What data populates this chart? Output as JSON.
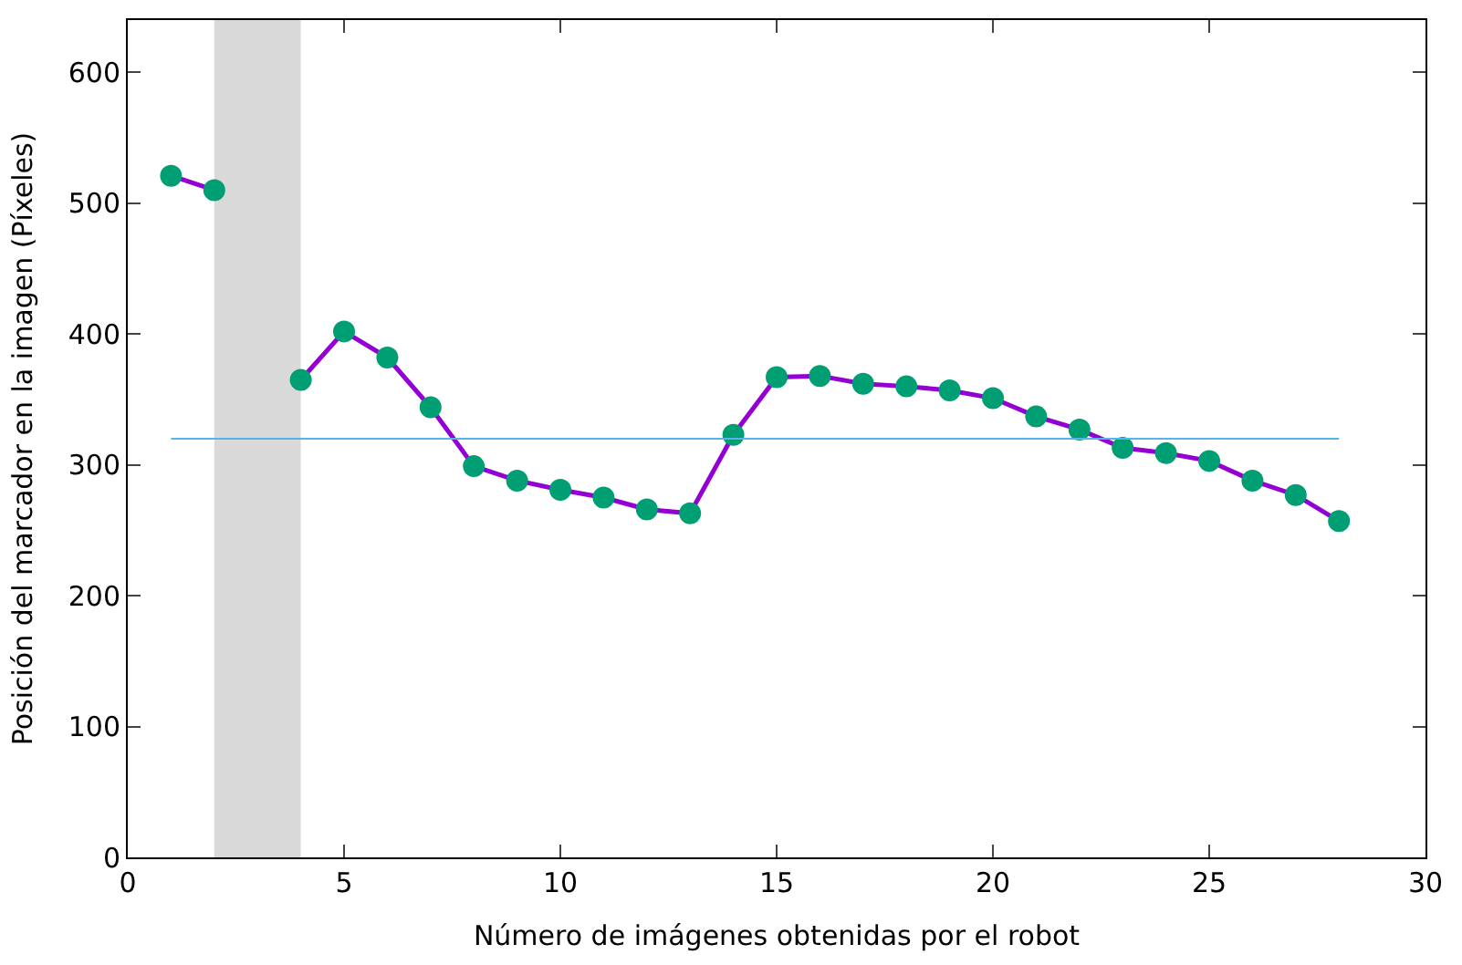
{
  "chart_data": {
    "type": "line",
    "xlabel": "Número de imágenes obtenidas por el robot",
    "ylabel": "Posición del marcador en la imagen (Píxeles)",
    "x": [
      1,
      2,
      3,
      4,
      5,
      6,
      7,
      8,
      9,
      10,
      11,
      12,
      13,
      14,
      15,
      16,
      17,
      18,
      19,
      20,
      21,
      22,
      23,
      24,
      25,
      26,
      27,
      28
    ],
    "series": [
      {
        "color": "#9400d3",
        "colors": [
          "#009e73",
          "#009e73",
          "#009e73",
          "#009e73",
          "#009e73",
          "#009e73",
          "#009e73",
          "#009e73",
          "#009e73",
          "#009e73",
          "#009e73",
          "#009e73",
          "#009e73",
          "#009e73",
          "#009e73",
          "#009e73",
          "#009e73",
          "#009e73",
          "#009e73",
          "#009e73",
          "#009e73",
          "#009e73",
          "#009e73",
          "#009e73",
          "#009e73",
          "#009e73",
          "#009e73",
          "#009e73"
        ],
        "values": [
          521,
          510,
          null,
          365,
          402,
          382,
          344,
          299,
          288,
          281,
          275,
          266,
          263,
          323,
          367,
          368,
          362,
          360,
          357,
          351,
          337,
          327,
          313,
          309,
          303,
          288,
          277,
          257
        ]
      }
    ],
    "xlim": [
      0,
      30
    ],
    "xticks": [
      0,
      5,
      10,
      15,
      20,
      25,
      30
    ],
    "ylim": [
      0,
      640
    ],
    "yticks": [
      0,
      100,
      200,
      300,
      400,
      500,
      600
    ],
    "ref_lines": [
      {
        "axis": "y",
        "value": 320,
        "color": "#56b4e9"
      }
    ],
    "bands": [
      {
        "axis": "x",
        "from": 2,
        "to": 4,
        "color": "#d9d9d9"
      }
    ],
    "marker": "circle",
    "line_style": "solid",
    "grid": false
  }
}
